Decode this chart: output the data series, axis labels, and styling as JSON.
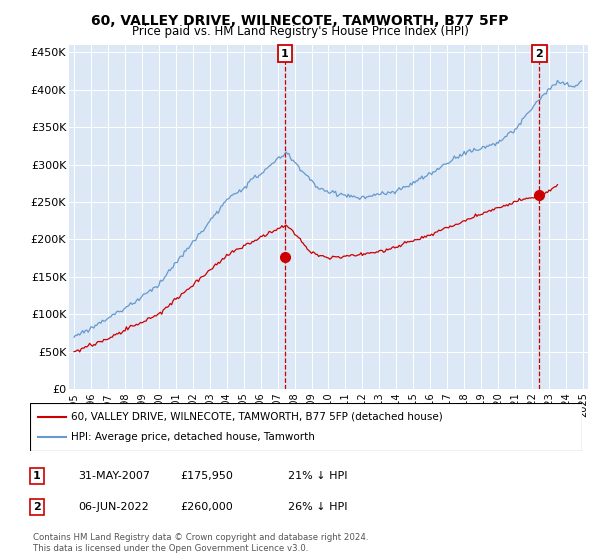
{
  "title": "60, VALLEY DRIVE, WILNECOTE, TAMWORTH, B77 5FP",
  "subtitle": "Price paid vs. HM Land Registry's House Price Index (HPI)",
  "legend_line1": "60, VALLEY DRIVE, WILNECOTE, TAMWORTH, B77 5FP (detached house)",
  "legend_line2": "HPI: Average price, detached house, Tamworth",
  "annotation1_label": "1",
  "annotation1_date": "31-MAY-2007",
  "annotation1_price": "£175,950",
  "annotation1_hpi": "21% ↓ HPI",
  "annotation1_year": 2007.42,
  "annotation1_value": 175950,
  "annotation2_label": "2",
  "annotation2_date": "06-JUN-2022",
  "annotation2_price": "£260,000",
  "annotation2_hpi": "26% ↓ HPI",
  "annotation2_year": 2022.44,
  "annotation2_value": 260000,
  "footer1": "Contains HM Land Registry data © Crown copyright and database right 2024.",
  "footer2": "This data is licensed under the Open Government Licence v3.0.",
  "hpi_color": "#6699cc",
  "price_color": "#cc0000",
  "annotation_color": "#cc0000",
  "bg_color": "#dce8f5",
  "ylim": [
    0,
    460000
  ],
  "yticks": [
    0,
    50000,
    100000,
    150000,
    200000,
    250000,
    300000,
    350000,
    400000,
    450000
  ],
  "ytick_labels": [
    "£0",
    "£50K",
    "£100K",
    "£150K",
    "£200K",
    "£250K",
    "£300K",
    "£350K",
    "£400K",
    "£450K"
  ],
  "xlim_start": 1994.7,
  "xlim_end": 2025.3
}
